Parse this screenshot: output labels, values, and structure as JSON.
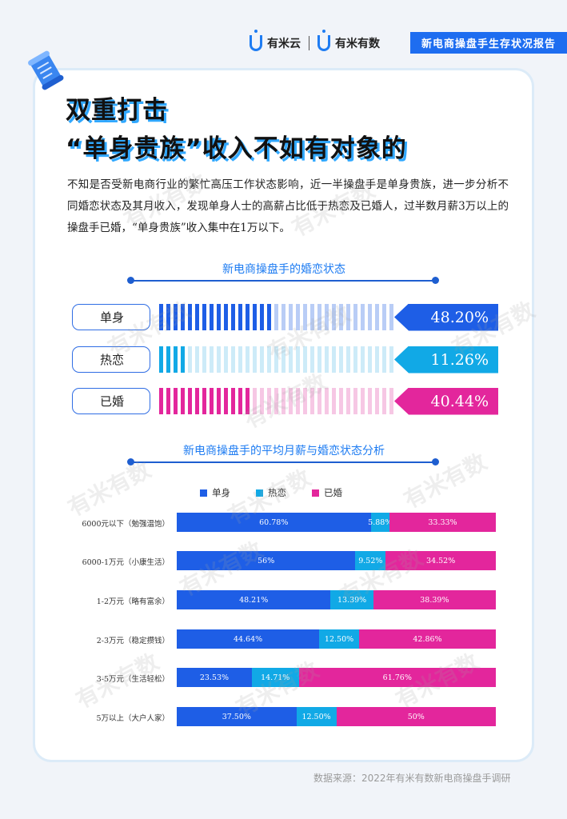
{
  "header": {
    "logo1": "有米云",
    "logo2": "有米有数",
    "report_title": "新电商操盘手生存状况报告"
  },
  "title": {
    "line1": "双重打击",
    "line2": "“单身贵族”收入不如有对象的"
  },
  "intro": "不知是否受新电商行业的繁忙高压工作状态影响，近一半操盘手是单身贵族，进一步分析不同婚恋状态及其月收入，发现单身人士的高薪占比低于热恋及已婚人，过半数月薪3万以上的操盘手已婚，“单身贵族”收入集中在1万以下。",
  "section1": {
    "title": "新电商操盘手的婚恋状态",
    "items": [
      {
        "label": "单身",
        "value": 48.2,
        "pct": "48.20%",
        "color": "#1e5ee6",
        "light": "#b9cdf6"
      },
      {
        "label": "热恋",
        "value": 11.26,
        "pct": "11.26%",
        "color": "#11a9e6",
        "light": "#cdebf8"
      },
      {
        "label": "已婚",
        "value": 40.44,
        "pct": "40.44%",
        "color": "#e3269c",
        "light": "#f6c7e4"
      }
    ]
  },
  "section2": {
    "title": "新电商操盘手的平均月薪与婚恋状态分析"
  },
  "chart_data": {
    "type": "bar",
    "stacked": true,
    "orientation": "horizontal",
    "categories": [
      "6000元以下（勉强温饱）",
      "6000-1万元（小康生活）",
      "1-2万元（略有富余）",
      "2-3万元（稳定攒钱）",
      "3-5万元（生活轻松）",
      "5万以上（大户人家）"
    ],
    "series": [
      {
        "name": "单身",
        "color": "#1e5ee6",
        "values": [
          60.78,
          56,
          48.21,
          44.64,
          23.53,
          37.5
        ],
        "labels": [
          "60.78%",
          "56%",
          "48.21%",
          "44.64%",
          "23.53%",
          "37.50%"
        ]
      },
      {
        "name": "热恋",
        "color": "#11a9e6",
        "values": [
          5.88,
          9.52,
          13.39,
          12.5,
          14.71,
          12.5
        ],
        "labels": [
          "5.88%",
          "9.52%",
          "13.39%",
          "12.50%",
          "14.71%",
          "12.50%"
        ]
      },
      {
        "name": "已婚",
        "color": "#e3269c",
        "values": [
          33.33,
          34.52,
          38.39,
          42.86,
          61.76,
          50
        ],
        "labels": [
          "33.33%",
          "34.52%",
          "38.39%",
          "42.86%",
          "61.76%",
          "50%"
        ]
      }
    ],
    "legend_position": "top-center",
    "xlim": [
      0,
      100
    ]
  },
  "watermark": "有米有数",
  "source": "数据来源：2022年有米有数新电商操盘手调研"
}
